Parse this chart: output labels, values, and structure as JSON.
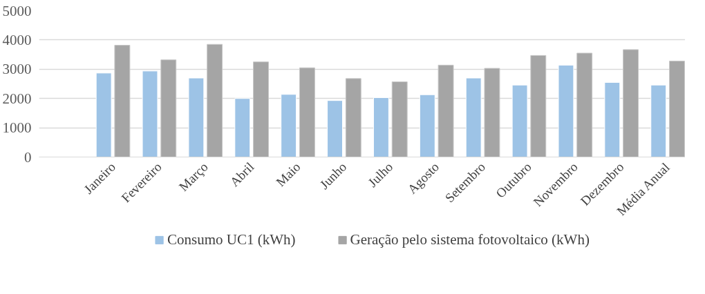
{
  "chart_data": {
    "type": "bar",
    "categories": [
      "Janeiro",
      "Fevereiro",
      "Março",
      "Abril",
      "Maio",
      "Junho",
      "Julho",
      "Agosto",
      "Setembro",
      "Outubro",
      "Novembro",
      "Dezembro",
      "Média Anual"
    ],
    "series": [
      {
        "name": "Consumo UC1 (kWh)",
        "color": "#9dc3e6",
        "values": [
          2870,
          2940,
          2700,
          2000,
          2140,
          1930,
          2030,
          2130,
          2700,
          2460,
          3140,
          2550,
          2460
        ]
      },
      {
        "name": "Geração pelo sistema fotovoltaico (kWh)",
        "color": "#a5a5a5",
        "values": [
          3820,
          3320,
          3850,
          3250,
          3050,
          2680,
          2570,
          3140,
          3030,
          3470,
          3550,
          3670,
          3280
        ]
      }
    ],
    "ylim": [
      0,
      5000
    ],
    "yticks": [
      0,
      1000,
      2000,
      3000,
      4000,
      5000
    ],
    "grid": "y",
    "legend": "bottom"
  }
}
